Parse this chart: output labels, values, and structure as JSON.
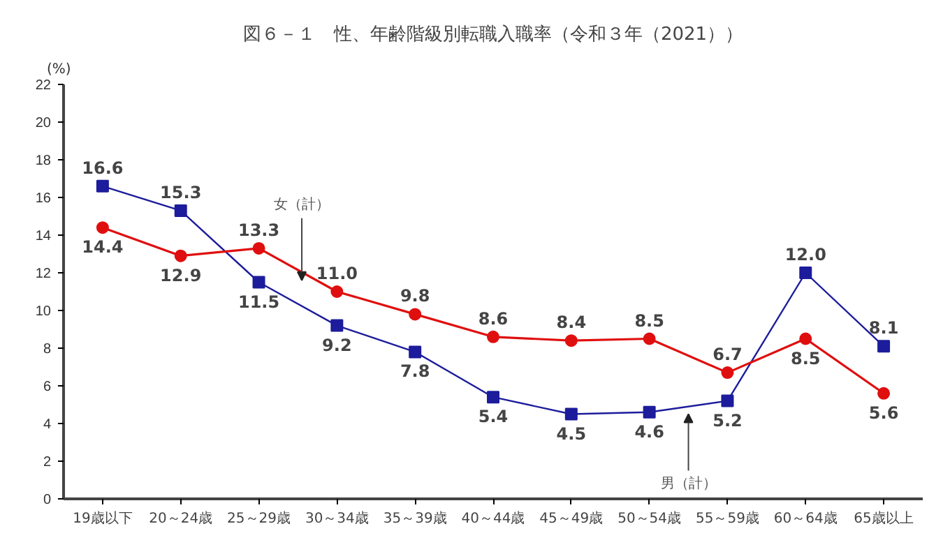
{
  "chart_data": {
    "type": "line",
    "title": "図６－１　性、年齢階級別転職入職率（令和３年（2021））",
    "ylabel": "(%)",
    "categories": [
      "19歳以下",
      "20～24歳",
      "25～29歳",
      "30～34歳",
      "35～39歳",
      "40～44歳",
      "45～49歳",
      "50～54歳",
      "55～59歳",
      "60～64歳",
      "65歳以上"
    ],
    "series": [
      {
        "name": "男（計）",
        "color": "#1c1c9c",
        "marker": "square",
        "values": [
          16.6,
          15.3,
          11.5,
          9.2,
          7.8,
          5.4,
          4.5,
          4.6,
          5.2,
          12.0,
          8.1
        ],
        "value_labels": [
          "16.6",
          "15.3",
          "11.5",
          "9.2",
          "7.8",
          "5.4",
          "4.5",
          "4.6",
          "5.2",
          "12.0",
          "8.1"
        ]
      },
      {
        "name": "女（計）",
        "color": "#e00f0f",
        "marker": "circle",
        "values": [
          14.4,
          12.9,
          13.3,
          11.0,
          9.8,
          8.6,
          8.4,
          8.5,
          6.7,
          8.5,
          5.6
        ],
        "value_labels": [
          "14.4",
          "12.9",
          "13.3",
          "11.0",
          "9.8",
          "8.6",
          "8.4",
          "8.5",
          "6.7",
          "8.5",
          "5.6"
        ]
      }
    ],
    "ylim": [
      0,
      22
    ],
    "yticks": [
      0,
      2,
      4,
      6,
      8,
      10,
      12,
      14,
      16,
      18,
      20,
      22
    ],
    "grid": false
  }
}
